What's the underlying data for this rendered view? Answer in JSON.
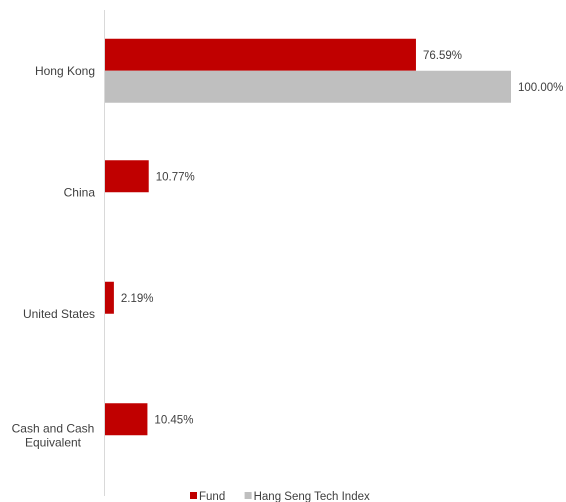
{
  "chart_data": {
    "type": "bar",
    "orientation": "horizontal",
    "categories": [
      [
        "Hong Kong"
      ],
      [
        "China"
      ],
      [
        "United States"
      ],
      [
        "Cash and Cash",
        "Equivalent"
      ]
    ],
    "series": [
      {
        "name": "Fund",
        "color": "#c00000",
        "values": [
          76.59,
          10.77,
          2.19,
          10.45
        ],
        "labels": [
          "76.59%",
          "10.77%",
          "2.19%",
          "10.45%"
        ]
      },
      {
        "name": "Hang Seng Tech Index",
        "color": "#bfbfbf",
        "values": [
          100.0,
          null,
          null,
          null
        ],
        "labels": [
          "100.00%",
          null,
          null,
          null
        ]
      }
    ],
    "xlim": [
      0,
      100
    ],
    "grid": false,
    "legend_position": "bottom"
  }
}
